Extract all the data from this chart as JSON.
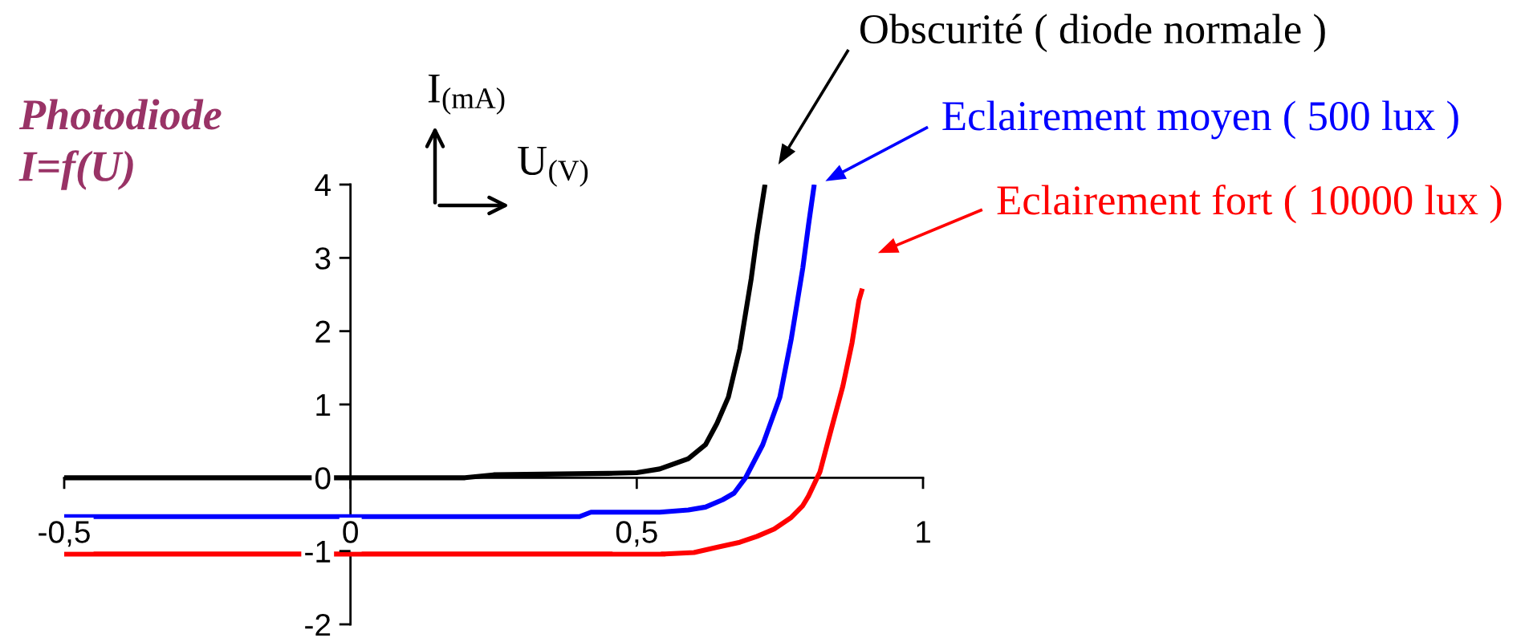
{
  "chart_data": {
    "type": "line",
    "title": "Photodiode",
    "subtitle": "I=f(U)",
    "xlabel": "U$_{(V)}$",
    "ylabel": "I$_{(mA)}$",
    "xlim": [
      -0.5,
      1
    ],
    "xticks": [
      {
        "value": -0.5,
        "label": "-0,5"
      },
      0,
      {
        "value": 0.5,
        "label": "0,5"
      },
      1
    ],
    "ylim": [
      -2,
      4
    ],
    "yticks": [
      -2,
      -1,
      0,
      1,
      2,
      3,
      4
    ],
    "series": [
      {
        "name": "Obscurité ( diode normale )",
        "color": "#000000",
        "x": [
          -0.5,
          0.2,
          0.25,
          0.45,
          0.5,
          0.54,
          0.59,
          0.62,
          0.64,
          0.66,
          0.68,
          0.7,
          0.71,
          0.724
        ],
        "values": [
          0,
          0,
          0.04,
          0.06,
          0.07,
          0.12,
          0.26,
          0.45,
          0.74,
          1.1,
          1.76,
          2.72,
          3.3,
          4.0
        ]
      },
      {
        "name": "Eclairement moyen ( 500 lux )",
        "color": "#0000ff",
        "x": [
          -0.5,
          0.4,
          0.42,
          0.54,
          0.59,
          0.62,
          0.65,
          0.67,
          0.69,
          0.72,
          0.75,
          0.77,
          0.79,
          0.8,
          0.81
        ],
        "values": [
          -0.53,
          -0.53,
          -0.47,
          -0.47,
          -0.44,
          -0.4,
          -0.3,
          -0.21,
          0,
          0.45,
          1.1,
          1.9,
          2.86,
          3.45,
          4.0
        ]
      },
      {
        "name": "Eclairement fort ( 10000 lux )",
        "color": "#ff0000",
        "x": [
          -0.5,
          0.5,
          0.55,
          0.6,
          0.64,
          0.68,
          0.71,
          0.74,
          0.77,
          0.79,
          0.8,
          0.82,
          0.84,
          0.86,
          0.876,
          0.888,
          0.894
        ],
        "values": [
          -1.04,
          -1.04,
          -1.04,
          -1.02,
          -0.95,
          -0.88,
          -0.8,
          -0.7,
          -0.54,
          -0.38,
          -0.25,
          0.08,
          0.67,
          1.25,
          1.84,
          2.42,
          2.58
        ]
      }
    ]
  }
}
